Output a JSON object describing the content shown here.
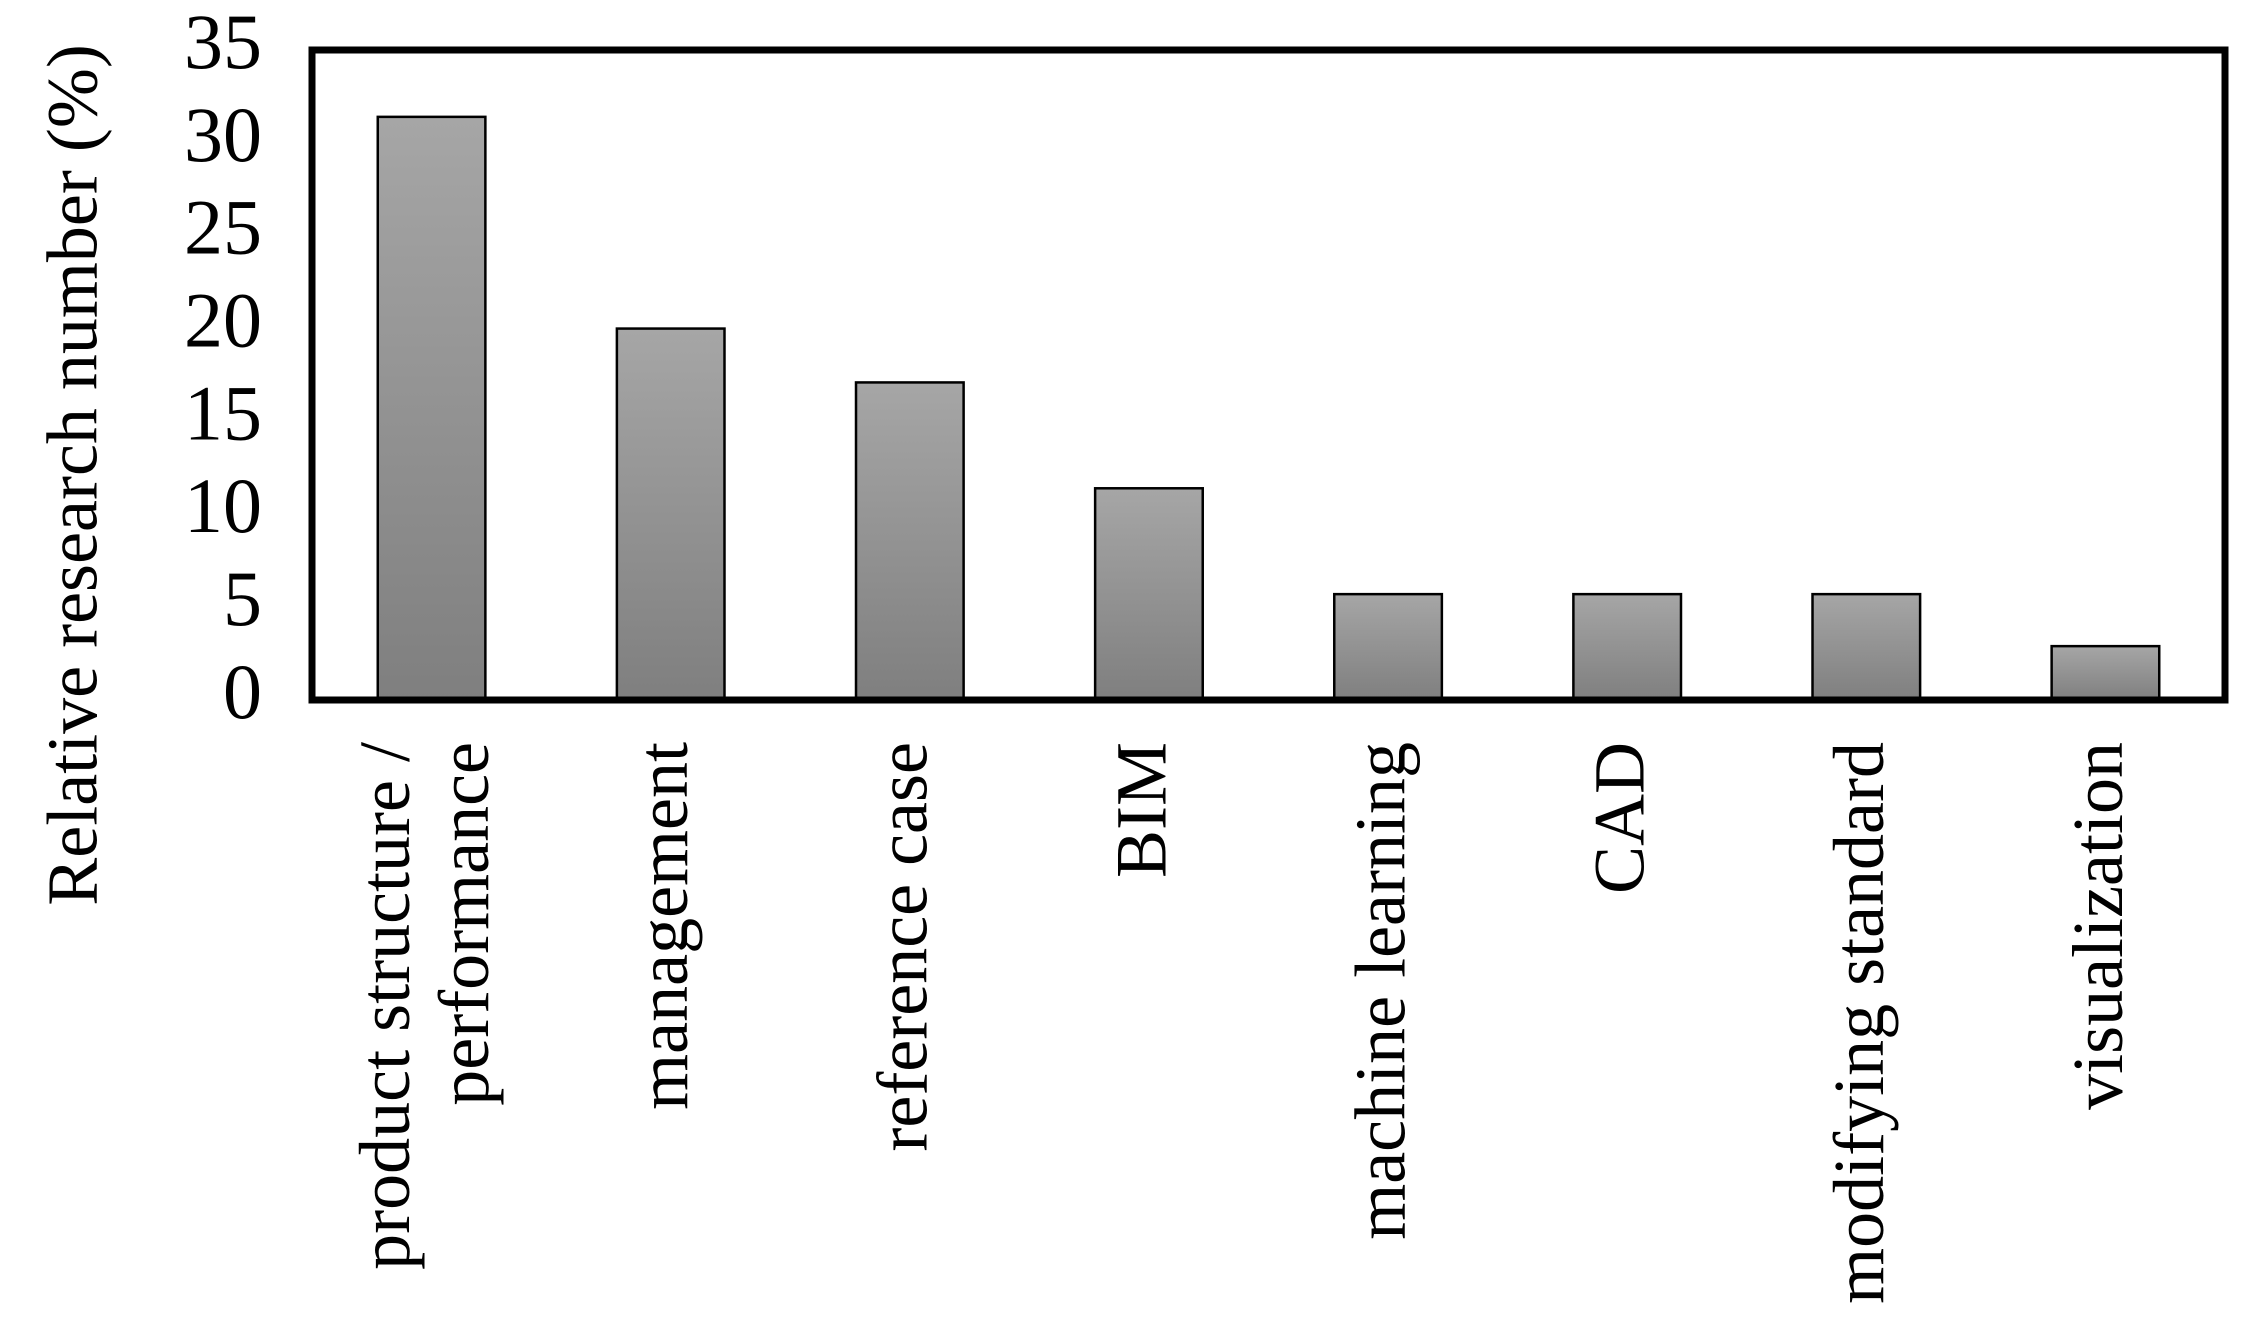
{
  "chart_data": {
    "type": "bar",
    "y_label": "Relative research number (%)",
    "categories": [
      "product structure /\nperformance",
      "management",
      "reference case",
      "BIM",
      "machine learning",
      "CAD",
      "modifying standard",
      "visualization"
    ],
    "values": [
      31.4,
      20,
      17.1,
      11.4,
      5.7,
      5.7,
      5.7,
      2.9
    ],
    "color": "#909090",
    "ylim": [
      0,
      35
    ],
    "yticks": [
      0,
      5,
      10,
      15,
      20,
      25,
      30,
      35
    ],
    "grid": false
  }
}
